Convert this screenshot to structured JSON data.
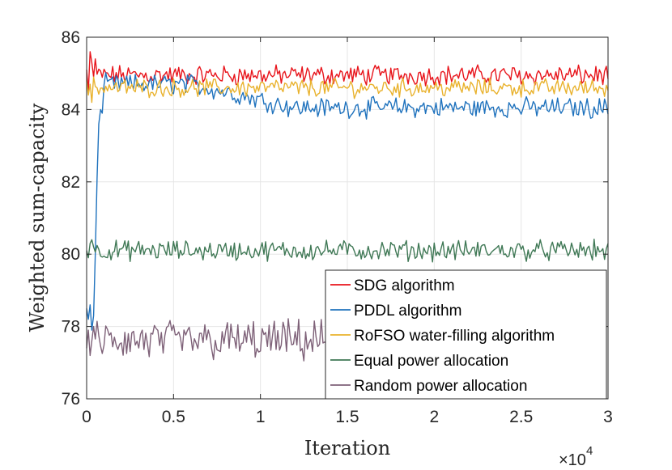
{
  "chart_data": {
    "type": "line",
    "title": "",
    "xlabel": "Iteration",
    "ylabel": "Weighted sum-capacity",
    "xlim": [
      0,
      3
    ],
    "ylim": [
      76,
      86
    ],
    "x_multiplier": "×10",
    "x_multiplier_exponent": "4",
    "xticks": [
      "0",
      "0.5",
      "1",
      "1.5",
      "2",
      "2.5",
      "3"
    ],
    "yticks": [
      "76",
      "78",
      "80",
      "82",
      "84",
      "86"
    ],
    "grid": true,
    "legend_position": "bottom-right",
    "colors": {
      "sdg": "#e8141b",
      "pddl": "#1f72bd",
      "rofso": "#e9b22d",
      "equal": "#3f7855",
      "random": "#7e6178",
      "axis": "#262626",
      "grid": "#e6e6e6"
    },
    "series": [
      {
        "key": "sdg",
        "name": "SDG algorithm",
        "color": "#e8141b",
        "mean": 84.95,
        "amp": 0.22,
        "start": [
          85.1,
          84.5,
          85.6,
          85.3,
          84.9,
          85.4
        ]
      },
      {
        "key": "pddl",
        "name": "PDDL algorithm",
        "color": "#1f72bd",
        "mean_start": 84.7,
        "mean_end": 84.05,
        "amp": 0.22,
        "start": [
          78.5,
          78.2,
          78.6,
          77.9,
          78.3,
          80.0,
          82.1,
          83.6,
          84.0,
          83.9
        ]
      },
      {
        "key": "rofso",
        "name": "RoFSO water-filling algorithm",
        "color": "#e9b22d",
        "mean": 84.6,
        "amp": 0.2,
        "start": [
          84.8,
          84.4,
          84.7,
          84.2,
          84.9
        ]
      },
      {
        "key": "equal",
        "name": "Equal power allocation",
        "color": "#3f7855",
        "mean": 80.1,
        "amp": 0.22,
        "start": [
          80.1,
          79.9,
          80.3,
          80.4,
          80.2
        ]
      },
      {
        "key": "random",
        "name": "Random power allocation",
        "color": "#7e6178",
        "mean": 77.6,
        "amp": 0.45,
        "x_end": 1.45,
        "start": [
          77.4,
          77.9,
          77.2,
          77.6,
          78.0
        ]
      }
    ]
  }
}
